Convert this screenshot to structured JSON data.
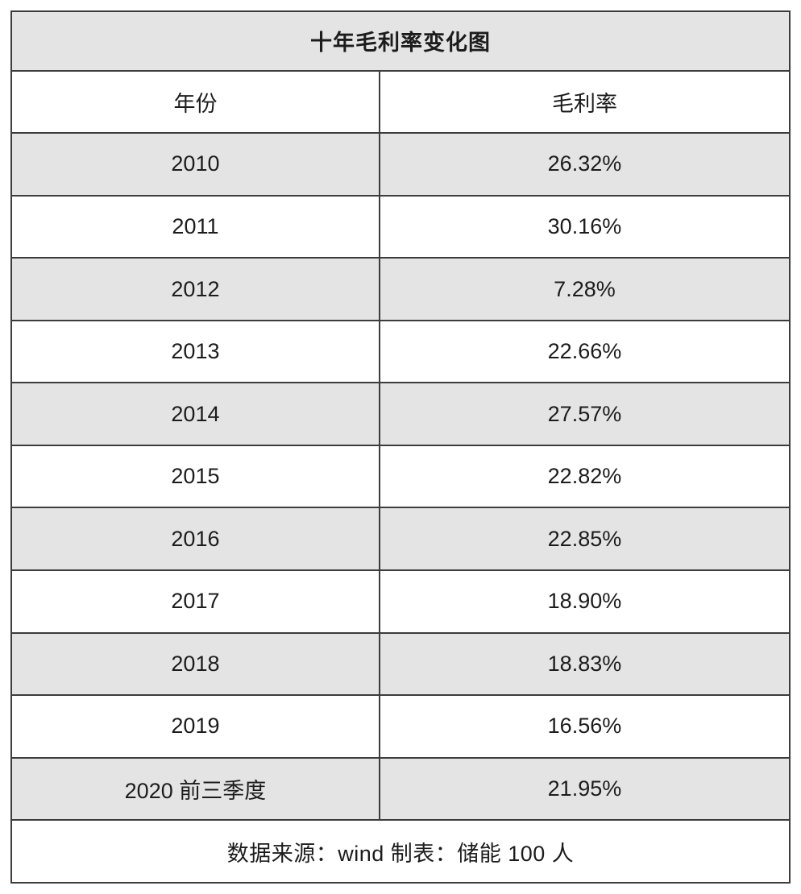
{
  "colors": {
    "row_shade": "#e4e4e4",
    "border": "#3c3c3c",
    "text": "#1c1c1c",
    "background": "#ffffff"
  },
  "table": {
    "title": "十年毛利率变化图",
    "columns": [
      "年份",
      "毛利率"
    ],
    "rows": [
      [
        "2010",
        "26.32%"
      ],
      [
        "2011",
        "30.16%"
      ],
      [
        "2012",
        "7.28%"
      ],
      [
        "2013",
        "22.66%"
      ],
      [
        "2014",
        "27.57%"
      ],
      [
        "2015",
        "22.82%"
      ],
      [
        "2016",
        "22.85%"
      ],
      [
        "2017",
        "18.90%"
      ],
      [
        "2018",
        "18.83%"
      ],
      [
        "2019",
        "16.56%"
      ],
      [
        "2020 前三季度",
        "21.95%"
      ]
    ],
    "footer": "数据来源：wind  制表：储能 100 人"
  },
  "chart_data": {
    "type": "table",
    "title": "十年毛利率变化图",
    "columns": [
      "年份",
      "毛利率"
    ],
    "categories": [
      "2010",
      "2011",
      "2012",
      "2013",
      "2014",
      "2015",
      "2016",
      "2017",
      "2018",
      "2019",
      "2020 前三季度"
    ],
    "values": [
      26.32,
      30.16,
      7.28,
      22.66,
      27.57,
      22.82,
      22.85,
      18.9,
      18.83,
      16.56,
      21.95
    ],
    "unit": "%",
    "source_note": "数据来源：wind  制表：储能 100 人",
    "layout_hints": {
      "row_striping": "odd data rows shaded light gray starting with 2010",
      "title_row_shaded": true,
      "footer_alignment": "right"
    }
  }
}
